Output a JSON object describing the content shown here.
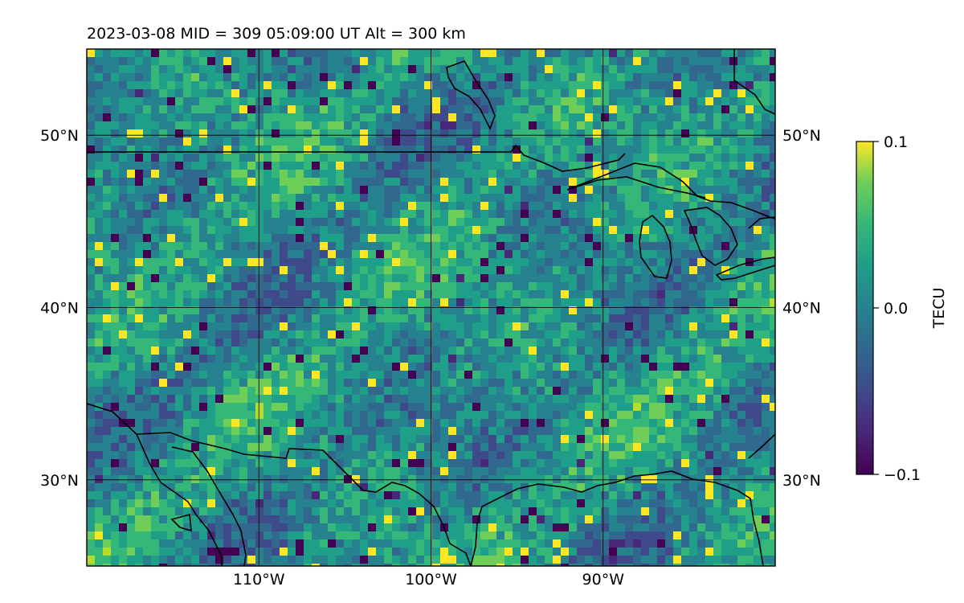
{
  "title": "2023-03-08  MID = 309    05:09:00  UT  Alt = 300 km",
  "map": {
    "lon_range": [
      -120,
      -80
    ],
    "lat_range": [
      25,
      55
    ],
    "lat_ticks": [
      {
        "value": 50,
        "label": "50°N"
      },
      {
        "value": 40,
        "label": "40°N"
      },
      {
        "value": 30,
        "label": "30°N"
      }
    ],
    "lon_ticks": [
      {
        "value": -110,
        "label": "110°W"
      },
      {
        "value": -100,
        "label": "100°W"
      },
      {
        "value": -90,
        "label": "90°W"
      }
    ],
    "gridlines": true
  },
  "colorbar": {
    "label": "TECU",
    "min": -0.1,
    "max": 0.1,
    "colormap": "viridis",
    "ticks": [
      {
        "value": 0.1,
        "label": "0.1"
      },
      {
        "value": 0.0,
        "label": "0.0"
      },
      {
        "value": -0.1,
        "label": "−0.1"
      }
    ]
  },
  "colors": {
    "viridis_low": "#440154",
    "viridis_mid": "#21918c",
    "viridis_high": "#fde725",
    "coastline": "#000000"
  }
}
